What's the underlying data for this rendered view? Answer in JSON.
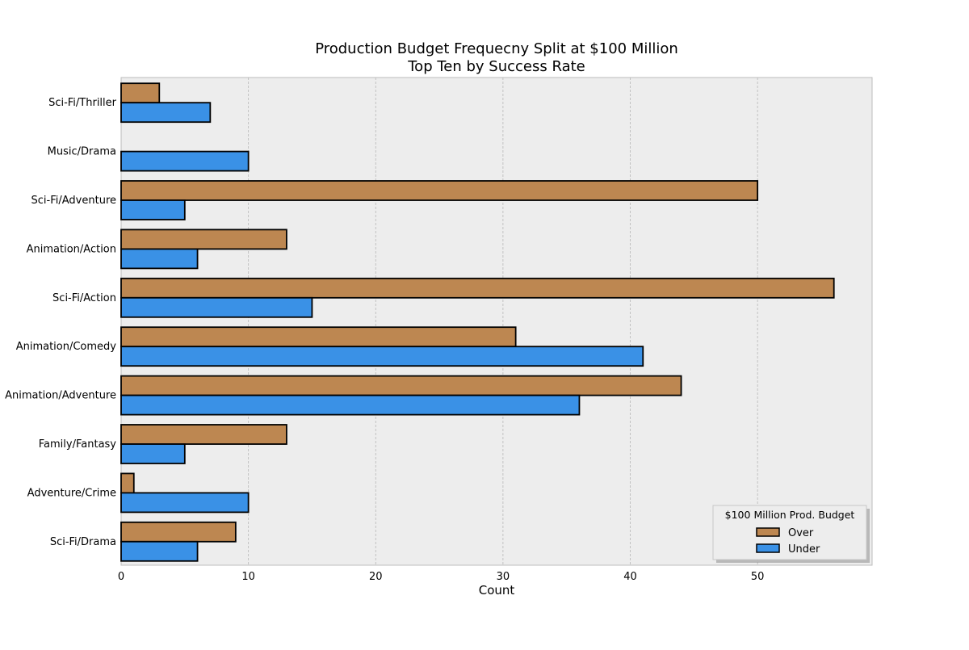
{
  "chart_data": {
    "type": "bar",
    "orientation": "horizontal",
    "title_lines": [
      "Production Budget Frequecny Split at $100 Million",
      "Top Ten by Success Rate"
    ],
    "xlabel": "Count",
    "ylabel": "",
    "xlim": [
      0,
      59
    ],
    "xticks": [
      "0",
      "10",
      "20",
      "30",
      "40",
      "50"
    ],
    "grid": "x-only dashed",
    "categories": [
      "Sci-Fi/Thriller",
      "Music/Drama",
      "Sci-Fi/Adventure",
      "Animation/Action",
      "Sci-Fi/Action",
      "Animation/Comedy",
      "Animation/Adventure",
      "Family/Fantasy",
      "Adventure/Crime",
      "Sci-Fi/Drama"
    ],
    "series": [
      {
        "name": "Over",
        "color": "#bd8751",
        "values": [
          3,
          0,
          50,
          13,
          56,
          31,
          44,
          13,
          1,
          9
        ]
      },
      {
        "name": "Under",
        "color": "#3a91e6",
        "values": [
          7,
          10,
          5,
          6,
          15,
          41,
          36,
          5,
          10,
          6
        ]
      }
    ],
    "legend": {
      "title": "$100 Million Prod. Budget",
      "placement": "lower-right"
    },
    "plot_background": "#ededed"
  }
}
